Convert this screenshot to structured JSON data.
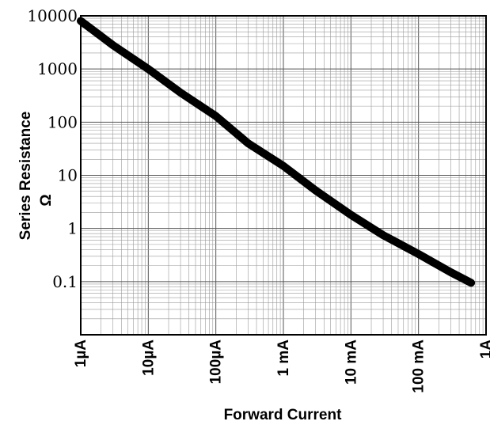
{
  "chart_data": {
    "type": "line",
    "xlabel": "Forward Current",
    "ylabel": "Series Resistance",
    "ylabel_unit": "Ω",
    "x_scale": "log",
    "y_scale": "log",
    "xlim": [
      1e-06,
      1
    ],
    "ylim": [
      0.01,
      10000
    ],
    "x_tick_values": [
      1e-06,
      1e-05,
      0.0001,
      0.001,
      0.01,
      0.1,
      1
    ],
    "x_tick_labels": [
      "1µA",
      "10µA",
      "100µA",
      "1 mA",
      "10 mA",
      "100 mA",
      "1A"
    ],
    "y_tick_values": [
      10000,
      1000,
      100,
      10,
      1,
      0.1
    ],
    "y_tick_labels": [
      "10000",
      "1000",
      "100",
      "10",
      "1",
      "0.1"
    ],
    "grid": true,
    "series": [
      {
        "x": [
          1e-06,
          3e-06,
          1e-05,
          3e-05,
          0.0001,
          0.0003,
          0.001,
          0.003,
          0.01,
          0.03,
          0.1,
          0.3,
          0.6
        ],
        "y": [
          8000,
          2800,
          1000,
          360,
          130,
          40,
          15,
          5.2,
          1.8,
          0.75,
          0.33,
          0.15,
          0.095
        ]
      }
    ]
  }
}
